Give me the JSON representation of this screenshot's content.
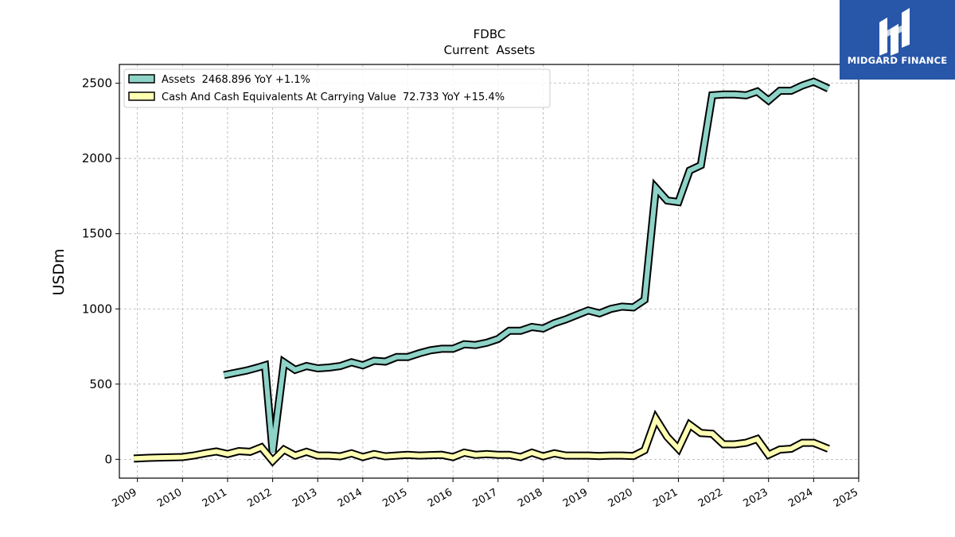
{
  "logo": {
    "text": "MIDGARD FINANCE",
    "icon": "midgard-logo-icon",
    "bg_color": "#2856a8"
  },
  "chart_data": {
    "type": "line",
    "title": "FDBC",
    "subtitle": "Current  Assets",
    "ylabel": "USDm",
    "xlabel": "",
    "xlim": [
      2008.6,
      2025.0
    ],
    "ylim": [
      -125,
      2625
    ],
    "yticks": [
      0,
      500,
      1000,
      1500,
      2000,
      2500
    ],
    "xticks": [
      "2009",
      "2010",
      "2011",
      "2012",
      "2013",
      "2014",
      "2015",
      "2016",
      "2017",
      "2018",
      "2019",
      "2020",
      "2021",
      "2022",
      "2023",
      "2024",
      "2025"
    ],
    "grid": true,
    "legend_position": "top-left",
    "series": [
      {
        "name": "Assets  2468.896 YoY +1.1%",
        "color": "#8dd3c7",
        "points": [
          [
            2010.92,
            560
          ],
          [
            2011.17,
            575
          ],
          [
            2011.42,
            590
          ],
          [
            2011.67,
            610
          ],
          [
            2011.83,
            625
          ],
          [
            2012.0,
            50
          ],
          [
            2012.25,
            645
          ],
          [
            2012.5,
            595
          ],
          [
            2012.75,
            620
          ],
          [
            2013.0,
            605
          ],
          [
            2013.25,
            610
          ],
          [
            2013.5,
            620
          ],
          [
            2013.75,
            645
          ],
          [
            2014.0,
            625
          ],
          [
            2014.25,
            655
          ],
          [
            2014.5,
            650
          ],
          [
            2014.75,
            680
          ],
          [
            2015.0,
            680
          ],
          [
            2015.25,
            705
          ],
          [
            2015.5,
            725
          ],
          [
            2015.75,
            735
          ],
          [
            2016.0,
            735
          ],
          [
            2016.25,
            765
          ],
          [
            2016.5,
            760
          ],
          [
            2016.75,
            775
          ],
          [
            2017.0,
            800
          ],
          [
            2017.25,
            855
          ],
          [
            2017.5,
            855
          ],
          [
            2017.75,
            880
          ],
          [
            2018.0,
            870
          ],
          [
            2018.25,
            905
          ],
          [
            2018.5,
            930
          ],
          [
            2018.75,
            960
          ],
          [
            2019.0,
            990
          ],
          [
            2019.25,
            970
          ],
          [
            2019.5,
            1000
          ],
          [
            2019.75,
            1015
          ],
          [
            2020.0,
            1010
          ],
          [
            2020.25,
            1060
          ],
          [
            2020.5,
            1805
          ],
          [
            2020.75,
            1720
          ],
          [
            2021.0,
            1710
          ],
          [
            2021.25,
            1920
          ],
          [
            2021.5,
            1955
          ],
          [
            2021.75,
            2420
          ],
          [
            2022.0,
            2425
          ],
          [
            2022.25,
            2425
          ],
          [
            2022.5,
            2420
          ],
          [
            2022.75,
            2445
          ],
          [
            2023.0,
            2385
          ],
          [
            2023.25,
            2450
          ],
          [
            2023.5,
            2450
          ],
          [
            2023.75,
            2485
          ],
          [
            2024.0,
            2510
          ],
          [
            2024.33,
            2465
          ]
        ]
      },
      {
        "name": "Cash And Cash Equivalents At Carrying Value  72.733 YoY +15.4%",
        "color": "#ffffb3",
        "points": [
          [
            2008.92,
            5
          ],
          [
            2009.25,
            10
          ],
          [
            2009.5,
            12
          ],
          [
            2010.0,
            15
          ],
          [
            2010.25,
            25
          ],
          [
            2010.5,
            40
          ],
          [
            2010.75,
            52
          ],
          [
            2011.0,
            35
          ],
          [
            2011.25,
            55
          ],
          [
            2011.5,
            50
          ],
          [
            2011.75,
            80
          ],
          [
            2012.0,
            -10
          ],
          [
            2012.25,
            65
          ],
          [
            2012.5,
            25
          ],
          [
            2012.75,
            50
          ],
          [
            2013.0,
            25
          ],
          [
            2013.25,
            25
          ],
          [
            2013.5,
            20
          ],
          [
            2013.75,
            40
          ],
          [
            2014.0,
            15
          ],
          [
            2014.25,
            35
          ],
          [
            2014.5,
            20
          ],
          [
            2014.75,
            25
          ],
          [
            2015.0,
            30
          ],
          [
            2015.25,
            25
          ],
          [
            2015.5,
            28
          ],
          [
            2015.75,
            30
          ],
          [
            2016.0,
            15
          ],
          [
            2016.25,
            45
          ],
          [
            2016.5,
            30
          ],
          [
            2016.75,
            35
          ],
          [
            2017.0,
            30
          ],
          [
            2017.25,
            30
          ],
          [
            2017.5,
            15
          ],
          [
            2017.75,
            45
          ],
          [
            2018.0,
            20
          ],
          [
            2018.25,
            40
          ],
          [
            2018.5,
            25
          ],
          [
            2018.75,
            25
          ],
          [
            2019.0,
            25
          ],
          [
            2019.25,
            22
          ],
          [
            2019.5,
            25
          ],
          [
            2019.75,
            25
          ],
          [
            2020.0,
            22
          ],
          [
            2020.25,
            60
          ],
          [
            2020.5,
            270
          ],
          [
            2020.75,
            150
          ],
          [
            2021.0,
            70
          ],
          [
            2021.25,
            230
          ],
          [
            2021.5,
            175
          ],
          [
            2021.75,
            170
          ],
          [
            2022.0,
            100
          ],
          [
            2022.25,
            100
          ],
          [
            2022.5,
            110
          ],
          [
            2022.75,
            135
          ],
          [
            2023.0,
            30
          ],
          [
            2023.25,
            65
          ],
          [
            2023.5,
            70
          ],
          [
            2023.75,
            110
          ],
          [
            2024.0,
            110
          ],
          [
            2024.33,
            70
          ]
        ]
      }
    ]
  }
}
